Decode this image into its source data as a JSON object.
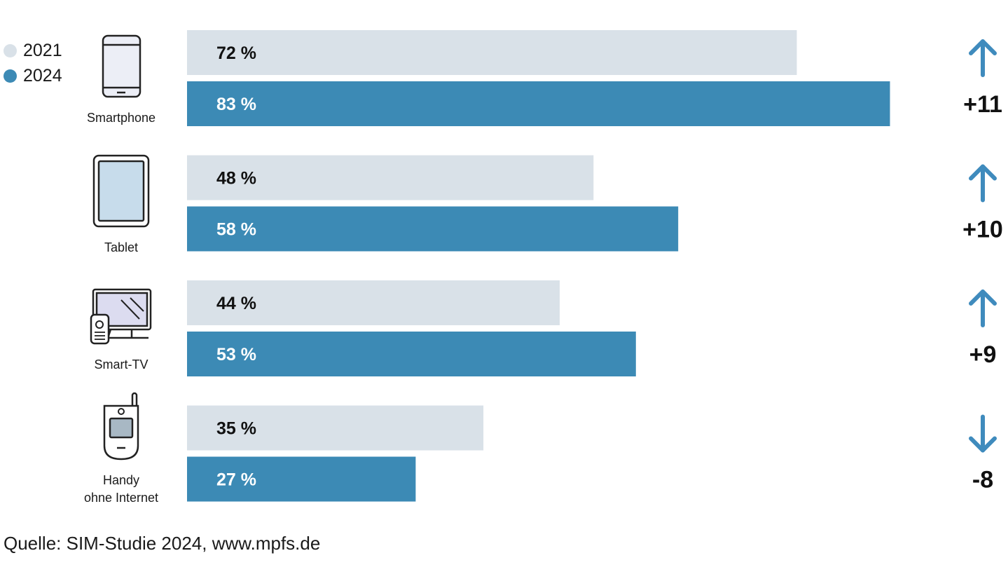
{
  "chart_data": {
    "type": "bar",
    "orientation": "horizontal",
    "categories": [
      "Smartphone",
      "Tablet",
      "Smart-TV",
      "Handy ohne Internet"
    ],
    "category_lines": [
      [
        "Smartphone"
      ],
      [
        "Tablet"
      ],
      [
        "Smart-TV"
      ],
      [
        "Handy",
        "ohne Internet"
      ]
    ],
    "series": [
      {
        "name": "2021",
        "values": [
          72,
          48,
          44,
          35
        ],
        "labels": [
          "72 %",
          "48 %",
          "44 %",
          "35 %"
        ]
      },
      {
        "name": "2024",
        "values": [
          83,
          58,
          53,
          27
        ],
        "labels": [
          "83 %",
          "58 %",
          "53 %",
          "27 %"
        ]
      }
    ],
    "changes": [
      11,
      10,
      9,
      -8
    ],
    "change_labels": [
      "+11",
      "+10",
      "+9",
      "-8"
    ],
    "category_icons": [
      "smartphone-icon",
      "tablet-icon",
      "smart-tv-icon",
      "feature-phone-icon"
    ],
    "xlim": [
      0,
      100
    ],
    "grid": false,
    "legend_position": "top-left",
    "colors": {
      "2021": "#d9e1e8",
      "2024": "#3c8ab5",
      "label_2021": "#111111",
      "label_2024": "#ffffff",
      "arrow": "#3f8bbd",
      "icon_stroke": "#222222",
      "smartphone_screen": "#eceef6",
      "tablet_screen": "#c7dceb",
      "tv_screen": "#dcdcf0",
      "handy_screen": "#a8b8c4"
    }
  },
  "source_text": "Quelle: SIM-Studie 2024, www.mpfs.de"
}
